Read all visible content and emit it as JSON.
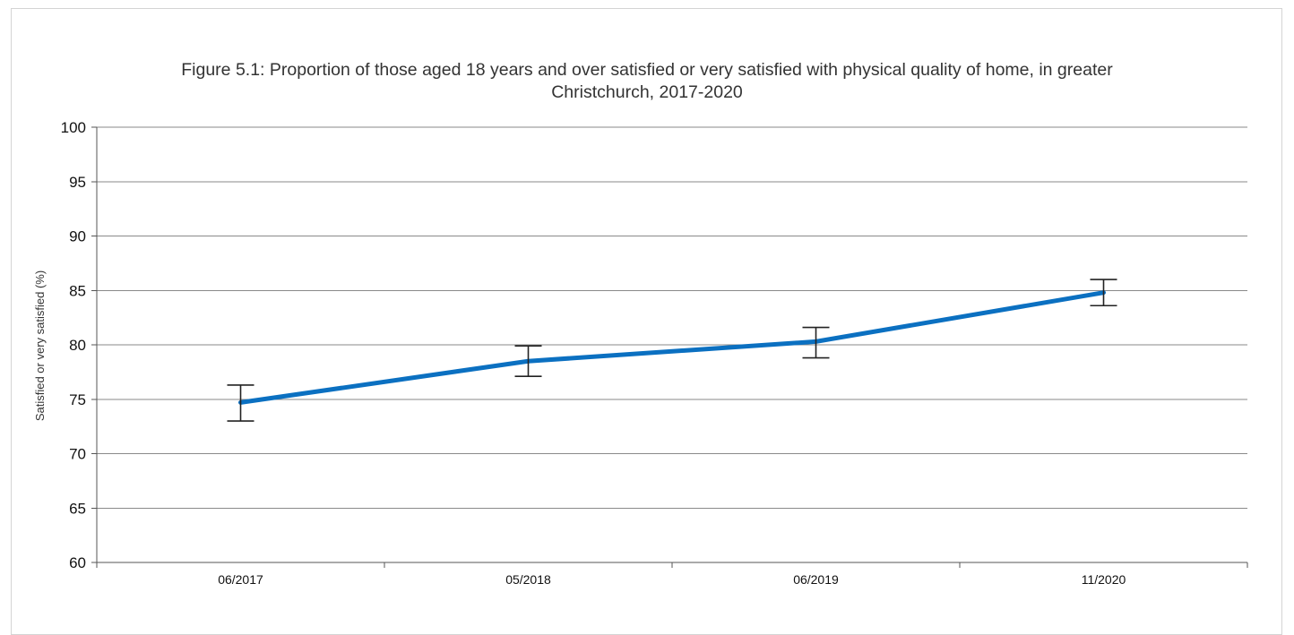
{
  "chart_data": {
    "type": "line",
    "title_lines": [
      "Figure 5.1: Proportion of those aged 18 years and over satisfied or very satisfied with physical quality of home, in greater",
      "Christchurch, 2017-2020"
    ],
    "xlabel": "",
    "ylabel": "Satisfied or very satisfied (%)",
    "categories": [
      "06/2017",
      "05/2018",
      "06/2019",
      "11/2020"
    ],
    "series": [
      {
        "values": [
          74.7,
          78.5,
          80.3,
          84.8
        ],
        "error_low": [
          73.0,
          77.1,
          78.8,
          83.6
        ],
        "error_high": [
          76.3,
          79.9,
          81.6,
          86.0
        ],
        "color": "#0b70c1"
      }
    ],
    "ylim": [
      60,
      100
    ],
    "yticks": [
      "60",
      "65",
      "70",
      "75",
      "80",
      "85",
      "90",
      "95",
      "100"
    ],
    "grid": "horizontal",
    "legend": "none"
  }
}
